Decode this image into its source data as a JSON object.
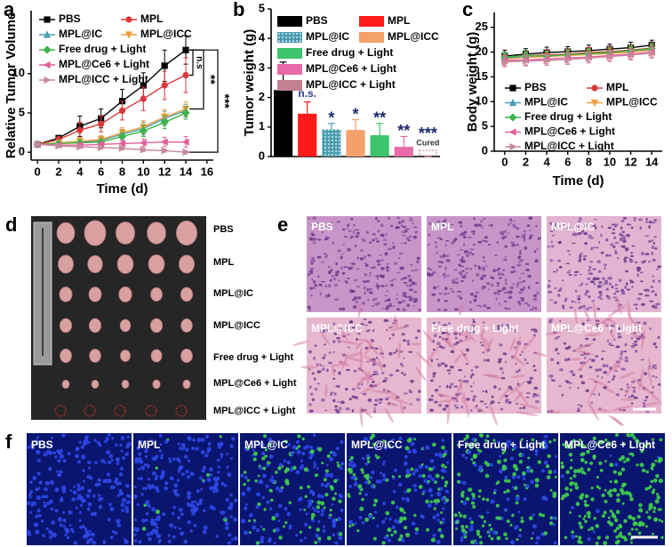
{
  "chart_data": [
    {
      "type": "line",
      "label": "a",
      "xlabel": "Time (d)",
      "ylabel": "Relative Tumor Volume",
      "x": [
        0,
        2,
        4,
        6,
        8,
        10,
        12,
        14
      ],
      "xlim": [
        -0.6,
        16.6
      ],
      "xticks": [
        0,
        2,
        4,
        6,
        8,
        10,
        12,
        14,
        16
      ],
      "ylim": [
        -1,
        18
      ],
      "yticks": [
        0,
        5,
        10
      ],
      "series": [
        {
          "name": "PBS",
          "color": "#000000",
          "marker": "square",
          "values": [
            1,
            1.8,
            3.3,
            4.3,
            6.5,
            8.5,
            11,
            13
          ],
          "errors": [
            0,
            0.3,
            1.3,
            1.2,
            1.5,
            1.6,
            2,
            1.8
          ]
        },
        {
          "name": "MPL",
          "color": "#d9383a",
          "marker": "circle",
          "values": [
            1,
            1.6,
            2.8,
            3.6,
            5.3,
            6.8,
            8.5,
            9.8
          ],
          "errors": [
            0,
            0.4,
            1,
            1,
            1.2,
            1.5,
            1.8,
            2.2
          ]
        },
        {
          "name": "MPL@IC",
          "color": "#4a9db0",
          "marker": "triangle-up",
          "values": [
            1,
            1.2,
            1.3,
            1.5,
            2.3,
            3,
            4.3,
            5.3
          ],
          "errors": [
            0,
            0.3,
            0.4,
            0.5,
            0.6,
            0.8,
            0.9,
            0.8
          ]
        },
        {
          "name": "MPL@ICC",
          "color": "#f39c3c",
          "marker": "triangle-down",
          "values": [
            1,
            1.2,
            1.4,
            1.6,
            2.5,
            3.2,
            4.5,
            5.5
          ],
          "errors": [
            0,
            0.3,
            0.4,
            0.5,
            0.6,
            0.8,
            0.9,
            0.9
          ]
        },
        {
          "name": "Free drug + Light",
          "color": "#3cb44b",
          "marker": "diamond",
          "values": [
            1,
            1.1,
            1.2,
            1.3,
            2,
            2.7,
            3.8,
            5
          ],
          "errors": [
            0,
            0.3,
            0.4,
            0.4,
            0.5,
            0.7,
            0.8,
            0.8
          ]
        },
        {
          "name": "MPL@Ce6 + Light",
          "color": "#e0609a",
          "marker": "triangle-left",
          "values": [
            1,
            0.9,
            0.9,
            1,
            1.1,
            1.2,
            1.3,
            1.3
          ],
          "errors": [
            0,
            0.2,
            0.3,
            0.3,
            0.4,
            0.5,
            0.6,
            0.7
          ]
        },
        {
          "name": "MPL@ICC + Light",
          "color": "#c8889e",
          "marker": "triangle-right",
          "values": [
            1,
            0.8,
            0.7,
            0.6,
            0.5,
            0.3,
            0.2,
            0
          ],
          "errors": [
            0,
            0.2,
            0.2,
            0.2,
            0.2,
            0.2,
            0.2,
            0.2
          ]
        }
      ],
      "significance_labels": [
        "n.s",
        "**",
        "***"
      ]
    },
    {
      "type": "bar",
      "label": "b",
      "ylabel": "Tumor weight (g)",
      "categories": [
        "PBS",
        "MPL",
        "MPL@IC",
        "MPL@ICC",
        "Free drug + Light",
        "MPL@Ce6 + Light",
        "MPL@ICC + Light"
      ],
      "values": [
        2.25,
        1.45,
        0.92,
        0.9,
        0.72,
        0.33,
        0
      ],
      "errors": [
        0.95,
        0.4,
        0.2,
        0.35,
        0.4,
        0.35,
        0
      ],
      "colors": [
        "#000000",
        "#ff1a1a",
        "#4a9db0",
        "#f4a06a",
        "#3cc46a",
        "#e86aa8",
        "#c08090"
      ],
      "hatches": [
        "none",
        "none",
        "dots",
        "none",
        "none",
        "none",
        "outline"
      ],
      "bar_labels": [
        null,
        "n.s.",
        "*",
        "*",
        "**",
        "**",
        "***"
      ],
      "cured_label": "Cured",
      "ylim": [
        0,
        5
      ],
      "yticks": [
        0,
        1,
        2,
        3,
        4,
        5
      ]
    },
    {
      "type": "line",
      "label": "c",
      "xlabel": "Time (d)",
      "ylabel": "Body weight (g)",
      "x": [
        0,
        2,
        4,
        6,
        8,
        10,
        12,
        14
      ],
      "xlim": [
        -1,
        15
      ],
      "xticks": [
        0,
        2,
        4,
        6,
        8,
        10,
        12,
        14
      ],
      "ylim": [
        0,
        28
      ],
      "yticks": [
        0,
        5,
        10,
        15,
        20,
        25
      ],
      "series": [
        {
          "name": "PBS",
          "color": "#000000",
          "marker": "square",
          "values": [
            19.2,
            19.6,
            19.9,
            20.1,
            20.3,
            20.6,
            20.9,
            21.4
          ],
          "errors": [
            1.2,
            1.1,
            1.1,
            1,
            1.1,
            1,
            1.1,
            1
          ]
        },
        {
          "name": "MPL",
          "color": "#d9383a",
          "marker": "circle",
          "values": [
            19,
            19.3,
            19.4,
            19.6,
            19.9,
            20.1,
            20.4,
            20.8
          ],
          "errors": [
            1,
            1,
            1,
            1,
            1,
            1,
            1,
            1
          ]
        },
        {
          "name": "MPL@IC",
          "color": "#4a9db0",
          "marker": "triangle-up",
          "values": [
            18.8,
            19,
            19.2,
            19.4,
            19.6,
            19.9,
            20.2,
            20.6
          ],
          "errors": [
            1,
            1,
            1,
            1,
            1,
            1,
            1,
            1
          ]
        },
        {
          "name": "MPL@ICC",
          "color": "#f39c3c",
          "marker": "triangle-down",
          "values": [
            18.6,
            18.9,
            19.1,
            19.3,
            19.5,
            19.7,
            20,
            20.4
          ],
          "errors": [
            1,
            1,
            1,
            1,
            1,
            1,
            1,
            1
          ]
        },
        {
          "name": "Free drug + Light",
          "color": "#3cb44b",
          "marker": "diamond",
          "values": [
            19,
            19.3,
            19.2,
            19.5,
            19.7,
            19.9,
            20.3,
            20.7
          ],
          "errors": [
            1,
            1,
            1,
            1,
            1,
            1,
            1,
            1
          ]
        },
        {
          "name": "MPL@Ce6 + Light",
          "color": "#e0609a",
          "marker": "triangle-left",
          "values": [
            18.3,
            18.4,
            18.6,
            18.8,
            19,
            19.3,
            19.6,
            20
          ],
          "errors": [
            1,
            1,
            1,
            1,
            1,
            1,
            1,
            1
          ]
        },
        {
          "name": "MPL@ICC + Light",
          "color": "#c8889e",
          "marker": "triangle-right",
          "values": [
            18,
            18.2,
            18.3,
            18.5,
            18.8,
            19.1,
            19.4,
            19.8
          ],
          "errors": [
            1,
            1,
            1,
            1,
            1,
            1,
            1,
            1
          ]
        }
      ]
    }
  ],
  "photo_panels": [
    {
      "label": "d",
      "rows": [
        "PBS",
        "MPL",
        "MPL@IC",
        "MPL@ICC",
        "Free drug + Light",
        "MPL@Ce6 + Light",
        "MPL@ICC + Light"
      ]
    },
    {
      "label": "e",
      "images": [
        "PBS",
        "MPL",
        "MPL@IC",
        "MPL@ICC",
        "Free drug + Light",
        "MPL@Ce6 + Light"
      ]
    },
    {
      "label": "f",
      "images": [
        "PBS",
        "MPL",
        "MPL@IC",
        "MPL@ICC",
        "Free drug + Light",
        "MPL@Ce6 + Light"
      ]
    }
  ]
}
